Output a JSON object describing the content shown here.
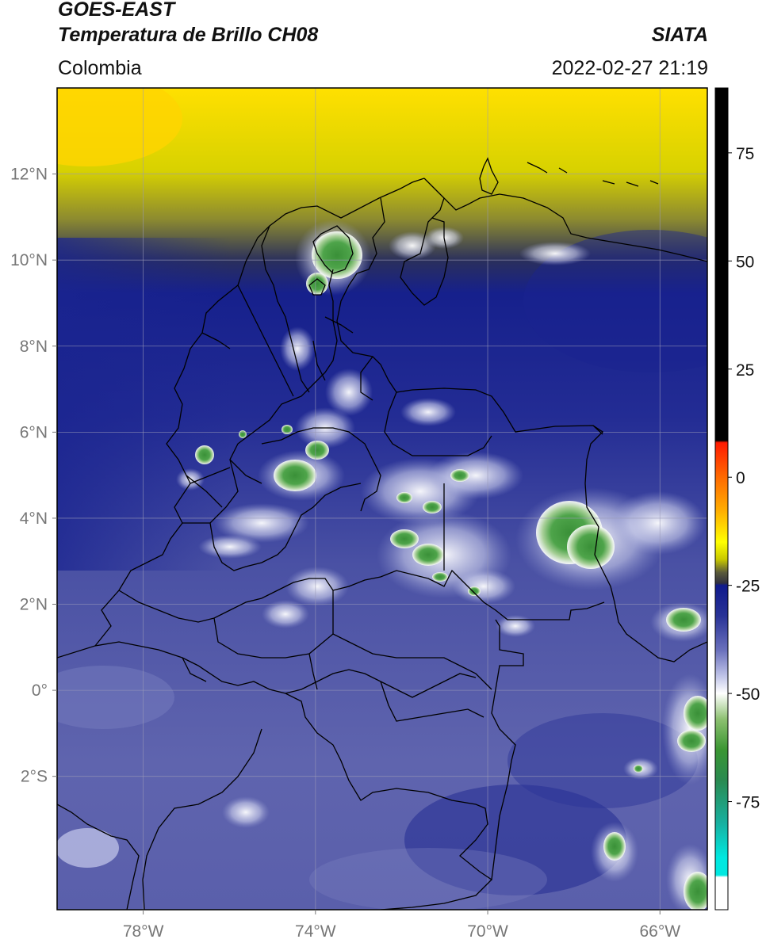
{
  "header": {
    "satellite": "GOES-EAST",
    "product": "Temperatura de Brillo CH08",
    "region": "Colombia",
    "agency": "SIATA",
    "datetime": "2022-02-27 21:19"
  },
  "map": {
    "lon_range": [
      -80,
      -64.9
    ],
    "lat_range": [
      -5.1,
      14
    ],
    "lon_ticks": [
      {
        "value": -78,
        "label": "78°W"
      },
      {
        "value": -74,
        "label": "74°W"
      },
      {
        "value": -70,
        "label": "70°W"
      },
      {
        "value": -66,
        "label": "66°W"
      }
    ],
    "lat_ticks": [
      {
        "value": 12,
        "label": "12°N"
      },
      {
        "value": 10,
        "label": "10°N"
      },
      {
        "value": 8,
        "label": "8°N"
      },
      {
        "value": 6,
        "label": "6°N"
      },
      {
        "value": 4,
        "label": "4°N"
      },
      {
        "value": 2,
        "label": "2°N"
      },
      {
        "value": 0,
        "label": "0°"
      },
      {
        "value": -2,
        "label": "2°S"
      }
    ],
    "grid": true
  },
  "colorbar": {
    "range": [
      -100,
      90
    ],
    "ticks": [
      {
        "value": 75,
        "label": "75"
      },
      {
        "value": 50,
        "label": "50"
      },
      {
        "value": 25,
        "label": "25"
      },
      {
        "value": 0,
        "label": "0"
      },
      {
        "value": -25,
        "label": "-25"
      },
      {
        "value": -50,
        "label": "-50"
      },
      {
        "value": -75,
        "label": "-75"
      }
    ],
    "stops": [
      {
        "value": 90,
        "color": "#000000"
      },
      {
        "value": 8.5,
        "color": "#000000"
      },
      {
        "value": 8,
        "color": "#ff1a00"
      },
      {
        "value": 0,
        "color": "#ff6a00"
      },
      {
        "value": -8,
        "color": "#ffb000"
      },
      {
        "value": -15,
        "color": "#ffff00"
      },
      {
        "value": -19,
        "color": "#c8c800"
      },
      {
        "value": -22,
        "color": "#5a5a3a"
      },
      {
        "value": -24.5,
        "color": "#303040"
      },
      {
        "value": -25,
        "color": "#0f1a8c"
      },
      {
        "value": -32,
        "color": "#283296"
      },
      {
        "value": -40,
        "color": "#6a70bc"
      },
      {
        "value": -46,
        "color": "#c0c4e8"
      },
      {
        "value": -50,
        "color": "#ffffff"
      },
      {
        "value": -56,
        "color": "#8cc070"
      },
      {
        "value": -63,
        "color": "#3a9632"
      },
      {
        "value": -70,
        "color": "#2a8a50"
      },
      {
        "value": -80,
        "color": "#18b0a0"
      },
      {
        "value": -88,
        "color": "#00e8e0"
      },
      {
        "value": -92,
        "color": "#00e8e0"
      },
      {
        "value": -92.5,
        "color": "#ffffff"
      },
      {
        "value": -100,
        "color": "#ffffff"
      }
    ]
  },
  "colors": {
    "deep_blue": "#1a2392",
    "mid_blue": "#5257a6",
    "light_blue": "#8a8ec6",
    "green": "#3e9a3e",
    "yellow": "#f2e800",
    "olive": "#6d6d2a",
    "border": "#000000"
  }
}
